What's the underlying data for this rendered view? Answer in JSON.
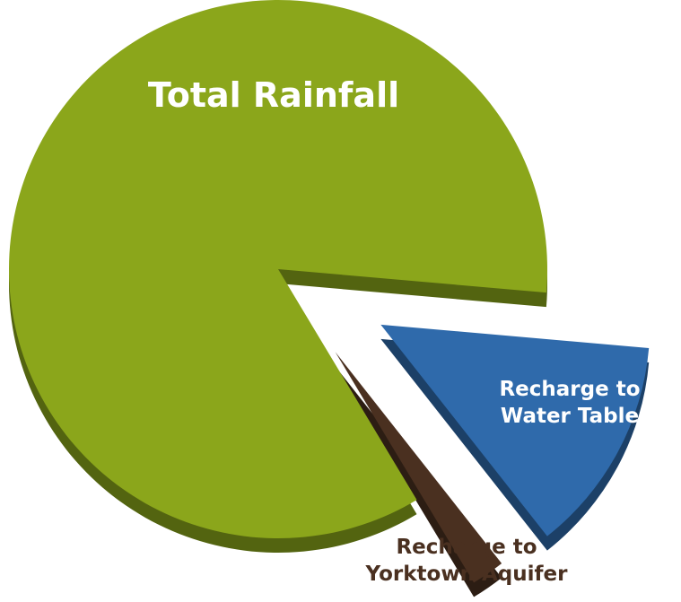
{
  "chart_data": {
    "type": "pie",
    "categories": [
      "Recharge to Water Table",
      "Recharge to Yorktown Aquifer",
      "Total Rainfall"
    ],
    "values": [
      13,
      2,
      85
    ],
    "colors": [
      "#2f6aab",
      "#4a3020",
      "#8ba61b"
    ]
  }
}
